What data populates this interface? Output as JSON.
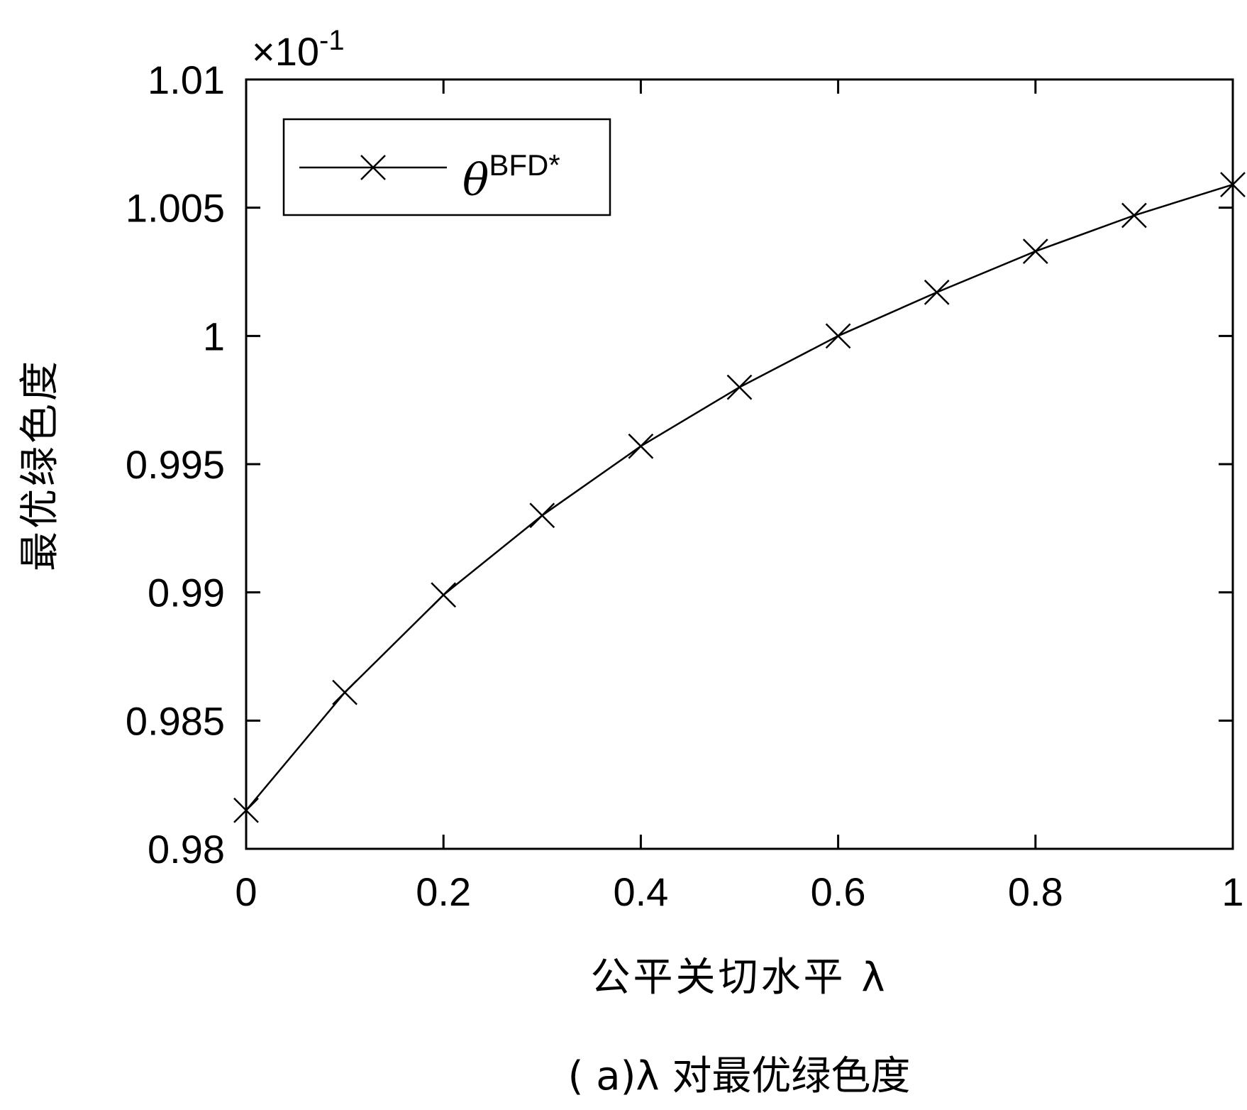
{
  "chart_data": {
    "type": "line",
    "title": "",
    "caption": "( a)λ 对最优绿色度",
    "xlabel": "公平关切水平 λ",
    "ylabel": "最优绿色度",
    "y_multiplier": {
      "base": "×10",
      "exponent": "-1"
    },
    "xlim": [
      0,
      1
    ],
    "ylim": [
      0.98,
      1.01
    ],
    "x_ticks": [
      0,
      0.2,
      0.4,
      0.6,
      0.8,
      1
    ],
    "x_tick_labels": [
      "0",
      "0.2",
      "0.4",
      "0.6",
      "0.8",
      "1"
    ],
    "y_ticks": [
      0.98,
      0.985,
      0.99,
      0.995,
      1,
      1.005,
      1.01
    ],
    "y_tick_labels": [
      "0.98",
      "0.985",
      "0.99",
      "0.995",
      "1",
      "1.005",
      "1.01"
    ],
    "grid": false,
    "legend_position": "top-left",
    "series": [
      {
        "name": "θ",
        "name_superscript": "BFD*",
        "marker": "x",
        "color": "#000000",
        "x": [
          0,
          0.1,
          0.2,
          0.3,
          0.4,
          0.5,
          0.6,
          0.7,
          0.8,
          0.9,
          1.0
        ],
        "y": [
          0.9815,
          0.9861,
          0.9899,
          0.993,
          0.9957,
          0.998,
          1.0,
          1.0017,
          1.0033,
          1.0047,
          1.0059
        ]
      }
    ]
  }
}
